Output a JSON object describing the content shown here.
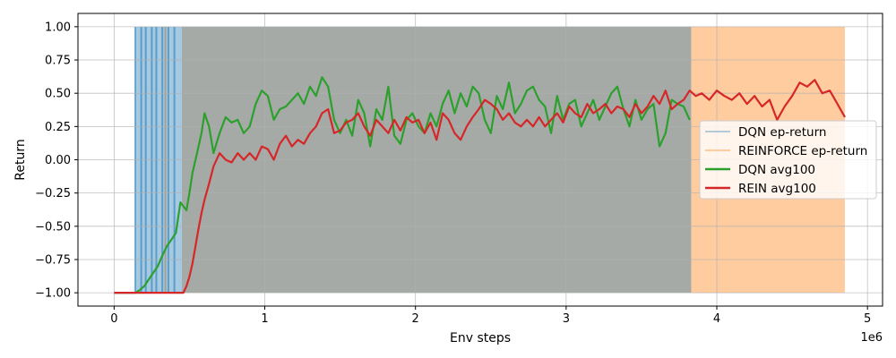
{
  "chart_data": {
    "type": "line",
    "xlabel": "Env steps",
    "ylabel": "Return",
    "x_offset_label": "1e6",
    "xlim": [
      -0.24,
      5.1
    ],
    "ylim": [
      -1.1,
      1.1
    ],
    "xticks": [
      0,
      1,
      2,
      3,
      4,
      5
    ],
    "xtick_labels": [
      "0",
      "1",
      "2",
      "3",
      "4",
      "5"
    ],
    "yticks": [
      -1.0,
      -0.75,
      -0.5,
      -0.25,
      0.0,
      0.25,
      0.5,
      0.75,
      1.0
    ],
    "ytick_labels": [
      "−1.00",
      "−0.75",
      "−0.50",
      "−0.25",
      "0.00",
      "0.25",
      "0.50",
      "0.75",
      "1.00"
    ],
    "grid": true,
    "legend_position": "center-right",
    "series": [
      {
        "name": "DQN ep-return",
        "style": "episode-band",
        "color": "#1f77b4",
        "alpha": 0.4,
        "x_range": [
          0.14,
          3.83
        ],
        "y_range": [
          -1.0,
          1.0
        ],
        "sparse_spikes_x": [
          0.14,
          0.18,
          0.21,
          0.25,
          0.28,
          0.32,
          0.36,
          0.4
        ]
      },
      {
        "name": "REINFORCE ep-return",
        "style": "episode-band",
        "color": "#ff7f0e",
        "alpha": 0.4,
        "x_range": [
          0.45,
          4.85
        ],
        "y_range": [
          -1.0,
          1.0
        ],
        "sparse_spikes_x": [
          0.34
        ]
      },
      {
        "name": "DQN avg100",
        "style": "line",
        "color": "#2ca02c",
        "x": [
          0,
          0.14,
          0.17,
          0.2,
          0.23,
          0.26,
          0.29,
          0.32,
          0.35,
          0.38,
          0.41,
          0.44,
          0.46,
          0.48,
          0.5,
          0.52,
          0.55,
          0.58,
          0.6,
          0.63,
          0.66,
          0.7,
          0.74,
          0.78,
          0.82,
          0.86,
          0.9,
          0.94,
          0.98,
          1.02,
          1.06,
          1.1,
          1.14,
          1.18,
          1.22,
          1.26,
          1.3,
          1.34,
          1.38,
          1.42,
          1.46,
          1.5,
          1.54,
          1.58,
          1.62,
          1.66,
          1.7,
          1.74,
          1.78,
          1.82,
          1.86,
          1.9,
          1.94,
          1.98,
          2.02,
          2.06,
          2.1,
          2.14,
          2.18,
          2.22,
          2.26,
          2.3,
          2.34,
          2.38,
          2.42,
          2.46,
          2.5,
          2.54,
          2.58,
          2.62,
          2.66,
          2.7,
          2.74,
          2.78,
          2.82,
          2.86,
          2.9,
          2.94,
          2.98,
          3.02,
          3.06,
          3.1,
          3.14,
          3.18,
          3.22,
          3.26,
          3.3,
          3.34,
          3.38,
          3.42,
          3.46,
          3.5,
          3.54,
          3.58,
          3.62,
          3.66,
          3.7,
          3.74,
          3.78,
          3.82
        ],
        "values": [
          -1.0,
          -1.0,
          -0.98,
          -0.95,
          -0.9,
          -0.85,
          -0.8,
          -0.72,
          -0.65,
          -0.6,
          -0.55,
          -0.32,
          -0.35,
          -0.38,
          -0.25,
          -0.1,
          0.05,
          0.2,
          0.35,
          0.25,
          0.05,
          0.2,
          0.32,
          0.28,
          0.3,
          0.2,
          0.25,
          0.42,
          0.52,
          0.48,
          0.3,
          0.38,
          0.4,
          0.45,
          0.5,
          0.42,
          0.55,
          0.48,
          0.62,
          0.55,
          0.3,
          0.2,
          0.3,
          0.18,
          0.45,
          0.35,
          0.1,
          0.38,
          0.3,
          0.55,
          0.18,
          0.12,
          0.3,
          0.35,
          0.25,
          0.2,
          0.35,
          0.25,
          0.42,
          0.52,
          0.35,
          0.5,
          0.4,
          0.55,
          0.5,
          0.3,
          0.2,
          0.48,
          0.38,
          0.58,
          0.35,
          0.42,
          0.52,
          0.55,
          0.45,
          0.4,
          0.2,
          0.48,
          0.3,
          0.42,
          0.45,
          0.25,
          0.35,
          0.45,
          0.3,
          0.4,
          0.5,
          0.55,
          0.38,
          0.25,
          0.45,
          0.3,
          0.38,
          0.42,
          0.1,
          0.2,
          0.45,
          0.42,
          0.4,
          0.3
        ]
      },
      {
        "name": "REIN avg100",
        "style": "line",
        "color": "#d62728",
        "x": [
          0,
          0.46,
          0.48,
          0.5,
          0.52,
          0.54,
          0.56,
          0.58,
          0.6,
          0.63,
          0.66,
          0.7,
          0.74,
          0.78,
          0.82,
          0.86,
          0.9,
          0.94,
          0.98,
          1.02,
          1.06,
          1.1,
          1.14,
          1.18,
          1.22,
          1.26,
          1.3,
          1.34,
          1.38,
          1.42,
          1.46,
          1.5,
          1.54,
          1.58,
          1.62,
          1.66,
          1.7,
          1.74,
          1.78,
          1.82,
          1.86,
          1.9,
          1.94,
          1.98,
          2.02,
          2.06,
          2.1,
          2.14,
          2.18,
          2.22,
          2.26,
          2.3,
          2.34,
          2.38,
          2.42,
          2.46,
          2.5,
          2.54,
          2.58,
          2.62,
          2.66,
          2.7,
          2.74,
          2.78,
          2.82,
          2.86,
          2.9,
          2.94,
          2.98,
          3.02,
          3.06,
          3.1,
          3.14,
          3.18,
          3.22,
          3.26,
          3.3,
          3.34,
          3.38,
          3.42,
          3.46,
          3.5,
          3.54,
          3.58,
          3.62,
          3.66,
          3.7,
          3.74,
          3.78,
          3.82,
          3.86,
          3.9,
          3.95,
          4.0,
          4.05,
          4.1,
          4.15,
          4.2,
          4.25,
          4.3,
          4.35,
          4.4,
          4.45,
          4.5,
          4.55,
          4.6,
          4.65,
          4.7,
          4.75,
          4.8,
          4.85
        ],
        "values": [
          -1.0,
          -1.0,
          -0.95,
          -0.88,
          -0.78,
          -0.65,
          -0.52,
          -0.4,
          -0.3,
          -0.18,
          -0.05,
          0.05,
          0.0,
          -0.02,
          0.05,
          0.0,
          0.05,
          0.0,
          0.1,
          0.08,
          0.0,
          0.12,
          0.18,
          0.1,
          0.15,
          0.12,
          0.2,
          0.25,
          0.35,
          0.38,
          0.2,
          0.22,
          0.28,
          0.3,
          0.35,
          0.25,
          0.18,
          0.3,
          0.25,
          0.2,
          0.3,
          0.22,
          0.32,
          0.28,
          0.3,
          0.2,
          0.28,
          0.15,
          0.35,
          0.3,
          0.2,
          0.15,
          0.25,
          0.32,
          0.38,
          0.45,
          0.42,
          0.38,
          0.3,
          0.35,
          0.28,
          0.25,
          0.3,
          0.25,
          0.32,
          0.25,
          0.3,
          0.35,
          0.28,
          0.4,
          0.35,
          0.32,
          0.42,
          0.35,
          0.38,
          0.42,
          0.35,
          0.4,
          0.38,
          0.32,
          0.42,
          0.35,
          0.4,
          0.48,
          0.42,
          0.52,
          0.38,
          0.42,
          0.45,
          0.52,
          0.48,
          0.5,
          0.45,
          0.52,
          0.48,
          0.45,
          0.5,
          0.42,
          0.48,
          0.4,
          0.45,
          0.3,
          0.4,
          0.48,
          0.58,
          0.55,
          0.6,
          0.5,
          0.52,
          0.42,
          0.32
        ]
      }
    ]
  }
}
